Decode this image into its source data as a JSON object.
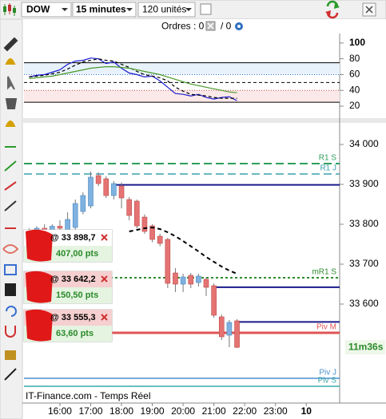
{
  "toolbar": {
    "symbol": "DOW",
    "interval": "15 minutes",
    "units": "120 unités"
  },
  "orders_bar": {
    "label": "Ordres : 0",
    "separator": "/ 0"
  },
  "chart_data": [
    {
      "type": "line",
      "ylim": [
        17,
        112
      ],
      "yticks": [
        100,
        80,
        60,
        40,
        20
      ],
      "levels": [
        {
          "value": 75,
          "color": "#000000",
          "dash": "none"
        },
        {
          "value": 60,
          "color": "#3a6fd0",
          "dash": "1 2"
        },
        {
          "value": 50,
          "color": "#000000",
          "dash": "4 3"
        },
        {
          "value": 40,
          "color": "#d04040",
          "dash": "1 2"
        },
        {
          "value": 25,
          "color": "#000000",
          "dash": "none"
        }
      ],
      "bands": [
        {
          "from": 60,
          "to": 75,
          "color": "#e8f2fb"
        },
        {
          "from": 25,
          "to": 40,
          "color": "#fbe8e8"
        }
      ],
      "series": [
        {
          "color": "#1c1cd0",
          "dash": "none",
          "values": [
            57,
            59,
            60,
            63,
            66,
            73,
            77,
            78,
            81,
            80,
            74,
            76,
            68,
            62,
            60,
            57,
            58,
            52,
            44,
            36,
            35,
            33,
            35,
            31,
            29,
            31,
            32,
            27
          ]
        },
        {
          "color": "#000000",
          "dash": "4 3",
          "values": [
            57,
            58,
            59,
            61,
            63,
            67,
            72,
            76,
            78,
            80,
            78,
            77,
            73,
            69,
            64,
            60,
            58,
            56,
            52,
            44,
            39,
            35,
            34,
            33,
            31,
            30,
            30,
            30
          ]
        },
        {
          "color": "#4a9a2a",
          "dash": "none",
          "values": [
            55,
            56,
            57,
            58,
            60,
            62,
            64,
            66,
            68,
            69,
            70,
            70,
            69,
            68,
            66,
            64,
            62,
            60,
            57,
            54,
            51,
            48,
            46,
            44,
            42,
            40,
            38,
            37
          ]
        }
      ]
    },
    {
      "type": "candlestick",
      "x": [
        "15:00",
        "15:15",
        "15:30",
        "15:45",
        "16:00",
        "16:15",
        "16:30",
        "16:45",
        "17:00",
        "17:15",
        "17:30",
        "17:45",
        "18:00",
        "18:15",
        "18:30",
        "18:45",
        "19:00",
        "19:15",
        "19:30",
        "19:45",
        "20:00",
        "20:15",
        "20:30",
        "20:45",
        "21:00",
        "21:15",
        "21:30",
        "21:45"
      ],
      "open": [
        33780,
        33785,
        33790,
        33782,
        33795,
        33782,
        33792,
        33832,
        33846,
        33922,
        33914,
        33872,
        33896,
        33862,
        33858,
        33818,
        33796,
        33770,
        33762,
        33678,
        33650,
        33672,
        33654,
        33662,
        33646,
        33568,
        33522,
        33558
      ],
      "high": [
        33790,
        33795,
        33800,
        33800,
        33810,
        33830,
        33862,
        33880,
        33932,
        33930,
        33920,
        33908,
        33905,
        33868,
        33862,
        33825,
        33800,
        33776,
        33766,
        33690,
        33676,
        33678,
        33676,
        33668,
        33652,
        33574,
        33560,
        33562
      ],
      "low": [
        33770,
        33775,
        33780,
        33775,
        33785,
        33775,
        33785,
        33825,
        33840,
        33896,
        33866,
        33862,
        33840,
        33810,
        33790,
        33776,
        33755,
        33745,
        33640,
        33630,
        33630,
        33640,
        33644,
        33620,
        33566,
        33510,
        33492,
        33490
      ],
      "close": [
        33785,
        33790,
        33782,
        33795,
        33790,
        33812,
        33852,
        33872,
        33918,
        33902,
        33872,
        33902,
        33866,
        33822,
        33796,
        33782,
        33762,
        33752,
        33652,
        33650,
        33668,
        33650,
        33670,
        33642,
        33572,
        33518,
        33554,
        33491.7
      ],
      "up_color": "#7fb2e0",
      "down_color": "#e57373",
      "xlim": [
        "14:50",
        "01:05"
      ],
      "xticks": [
        "16:00",
        "17:00",
        "18:00",
        "19:00",
        "20:00",
        "21:00",
        "22:00",
        "23:00",
        {
          "value": "00:00",
          "label": "10"
        }
      ],
      "ylim": [
        33382,
        34042
      ],
      "yticks": [
        {
          "value": 34000,
          "label": "34 000"
        },
        {
          "value": 33900,
          "label": "33 900"
        },
        {
          "value": 33800,
          "label": "33 800"
        },
        {
          "value": 33700,
          "label": "33 700"
        },
        {
          "value": 33600,
          "label": "33 600"
        }
      ],
      "moving_average": {
        "color": "#000000",
        "values": [
          null,
          null,
          null,
          null,
          null,
          null,
          null,
          null,
          null,
          null,
          null,
          null,
          null,
          33782,
          33786,
          33790,
          33792,
          33788,
          33780,
          33770,
          33758,
          33745,
          33732,
          33718,
          33706,
          33694,
          33684,
          33676
        ]
      },
      "levels": [
        {
          "name": "R1 S",
          "value": 33952,
          "color": "#2e9e5b",
          "dash": "10 5",
          "width": 2
        },
        {
          "name": "R1 J",
          "value": 33926,
          "color": "#3a9fb0",
          "dash": "10 5",
          "width": 1.5
        },
        {
          "name": "mR1 S",
          "value": 33666,
          "color": "#2e8b2e",
          "dash": "3 3",
          "width": 2
        },
        {
          "name": "Piv M",
          "value": 33528,
          "color": "#e05555",
          "dash": "none",
          "width": 3
        },
        {
          "name": "Piv J",
          "value": 33414,
          "color": "#4a8fd0",
          "dash": "none",
          "width": 1.5
        },
        {
          "name": "Piv S",
          "value": 33394,
          "color": "#3aa8a8",
          "dash": "none",
          "width": 1.5
        }
      ],
      "orders": [
        {
          "price": 33898.7,
          "price_label": "@ 33 898,7",
          "pnl": 407,
          "pnl_label": "407,00 pts",
          "start": "17:45"
        },
        {
          "price": 33642.2,
          "price_label": "@ 33 642,2",
          "pnl": 150.5,
          "pnl_label": "150,50 pts",
          "start": "21:00"
        },
        {
          "price": 33555.3,
          "price_label": "@ 33 555,3",
          "pnl": 63.6,
          "pnl_label": "63,60 pts",
          "start": "21:45"
        }
      ],
      "countdown": "11m36s",
      "source": "IT-Finance.com - Temps Réel"
    }
  ]
}
